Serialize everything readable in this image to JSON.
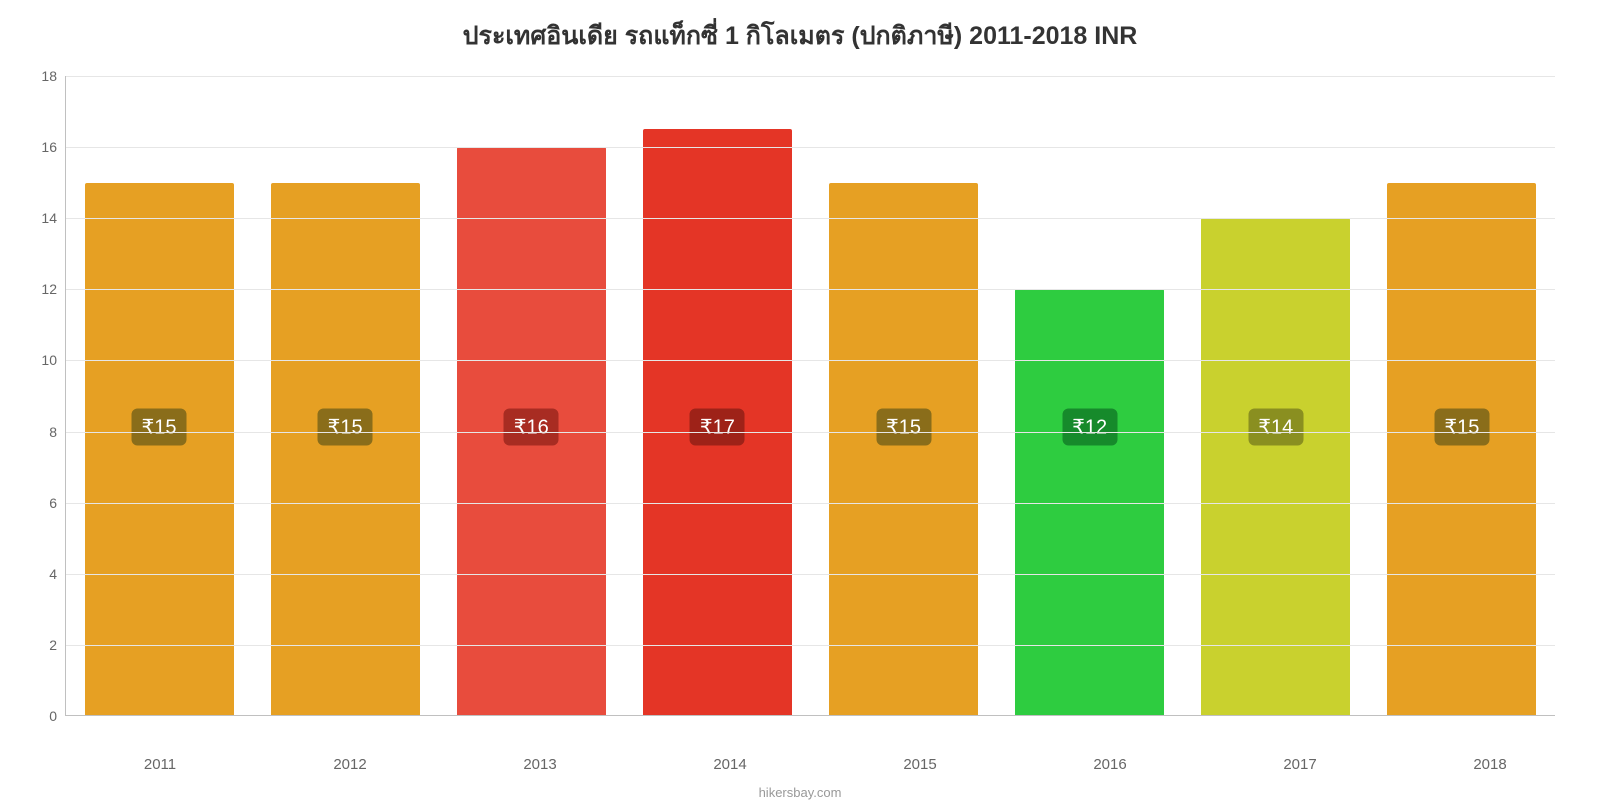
{
  "chart": {
    "type": "bar",
    "title": "ประเทศอินเดีย รถแท็กซี่ 1 กิโลเมตร (ปกติภาษี) 2011-2018 INR",
    "title_fontsize": 25,
    "title_color": "#333333",
    "background_color": "#ffffff",
    "grid_color": "#e6e6e6",
    "axis_line_color": "#c0c0c0",
    "tick_label_color": "#666666",
    "tick_fontsize": 14,
    "bar_label_fontsize": 20,
    "bar_label_text_color": "#ffffff",
    "bar_width_ratio": 0.8,
    "categories": [
      "2011",
      "2012",
      "2013",
      "2014",
      "2015",
      "2016",
      "2017",
      "2018"
    ],
    "values": [
      15,
      15,
      16,
      16.5,
      15,
      12,
      14,
      15
    ],
    "value_labels": [
      "₹15",
      "₹15",
      "₹16",
      "₹17",
      "₹15",
      "₹12",
      "₹14",
      "₹15"
    ],
    "bar_colors": [
      "#e6a023",
      "#e6a023",
      "#e84c3d",
      "#e43526",
      "#e6a023",
      "#2ecc40",
      "#c9d12e",
      "#e6a023"
    ],
    "label_badge_colors": [
      "#8a6d1a",
      "#8a6d1a",
      "#a82c22",
      "#9e2218",
      "#8a6d1a",
      "#168a2b",
      "#8a8f20",
      "#8a6d1a"
    ],
    "ylim": [
      0,
      18
    ],
    "ytick_step": 2,
    "yticks": [
      "0",
      "2",
      "4",
      "6",
      "8",
      "10",
      "12",
      "14",
      "16",
      "18"
    ],
    "attribution": "hikersbay.com",
    "attribution_color": "#999999",
    "attribution_fontsize": 13,
    "label_vertical_center_value": 8.1
  }
}
